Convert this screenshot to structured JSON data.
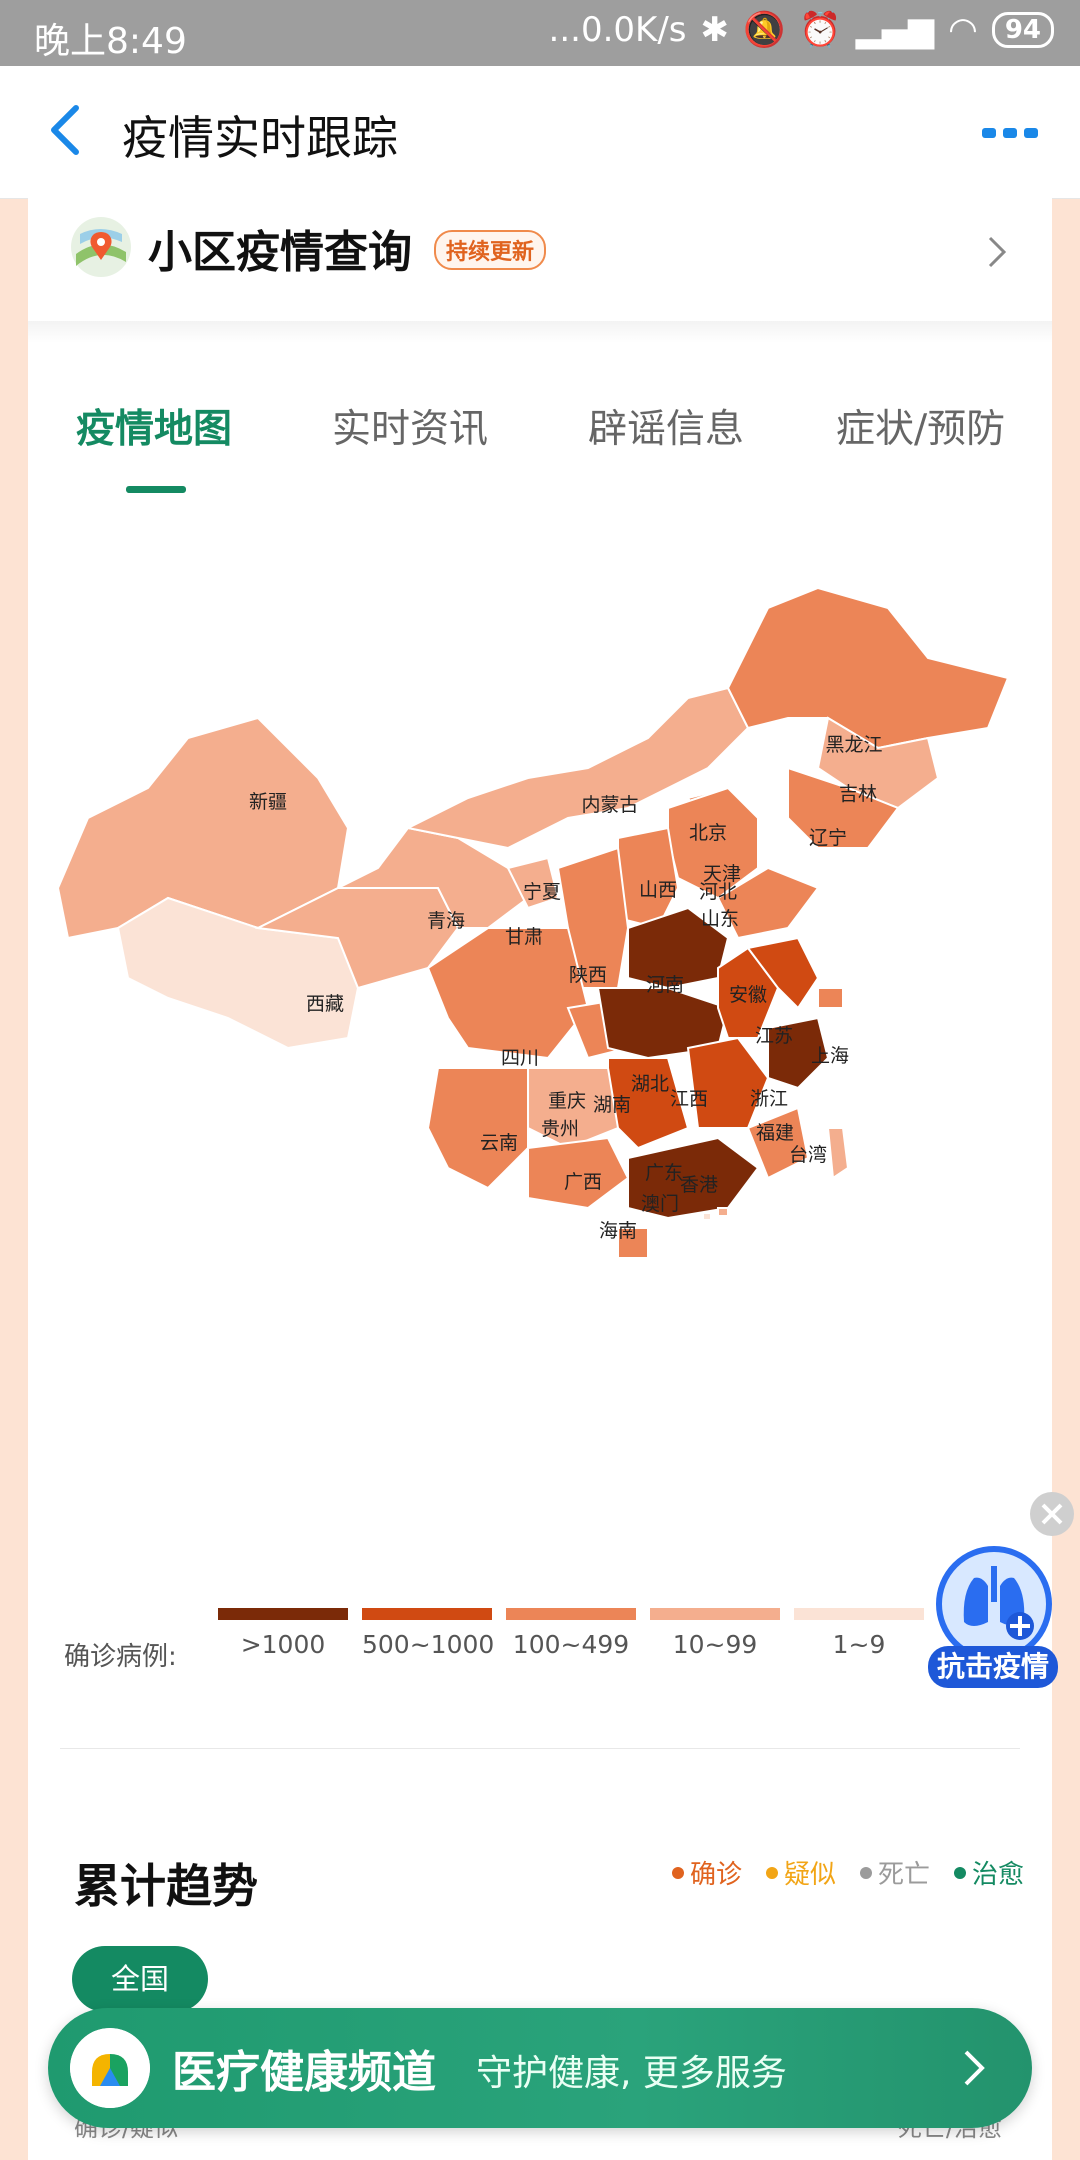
{
  "status_bar": {
    "time": "晚上8:49",
    "net_speed": "...0.0K/s",
    "battery": "94"
  },
  "navbar": {
    "title": "疫情实时跟踪"
  },
  "community": {
    "label": "小区疫情查询",
    "badge": "持续更新"
  },
  "tabs": [
    {
      "label": "疫情地图",
      "active": true
    },
    {
      "label": "实时资讯",
      "active": false
    },
    {
      "label": "辟谣信息",
      "active": false
    },
    {
      "label": "症状/预防",
      "active": false
    }
  ],
  "map": {
    "provinces": [
      "新疆",
      "西藏",
      "青海",
      "甘肃",
      "宁夏",
      "内蒙古",
      "黑龙江",
      "吉林",
      "辽宁",
      "北京",
      "天津",
      "河北",
      "山西",
      "山东",
      "陕西",
      "河南",
      "四川",
      "重庆",
      "湖北",
      "安徽",
      "江苏",
      "上海",
      "浙江",
      "湖南",
      "江西",
      "贵州",
      "云南",
      "广西",
      "广东",
      "福建",
      "台湾",
      "香港",
      "澳门",
      "海南"
    ],
    "colors": {
      "gt1000": "#7b2a08",
      "c500_1000": "#d04a12",
      "c100_499": "#ec8557",
      "c10_99": "#f4ae8e",
      "c1_9": "#fbe3d6"
    }
  },
  "legend": {
    "label": "确诊病例:",
    "items": [
      {
        "text": ">1000",
        "color": "#7b2a08"
      },
      {
        "text": "500~1000",
        "color": "#d04a12"
      },
      {
        "text": "100~499",
        "color": "#ec8557"
      },
      {
        "text": "10~99",
        "color": "#f4ae8e"
      },
      {
        "text": "1~9",
        "color": "#fbe3d6"
      }
    ]
  },
  "trend": {
    "title": "累计趋势",
    "legend": [
      {
        "text": "确诊",
        "color": "#e0631f"
      },
      {
        "text": "疑似",
        "color": "#f2a516"
      },
      {
        "text": "死亡",
        "color": "#9b9b9b"
      },
      {
        "text": "治愈",
        "color": "#148a62"
      }
    ],
    "region_pill": "全国",
    "left_axis": "确诊/疑似",
    "right_axis": "死亡/治愈"
  },
  "banner": {
    "title": "医疗健康频道",
    "subtitle": "守护健康, 更多服务"
  },
  "fab": {
    "label": "抗击疫情"
  }
}
